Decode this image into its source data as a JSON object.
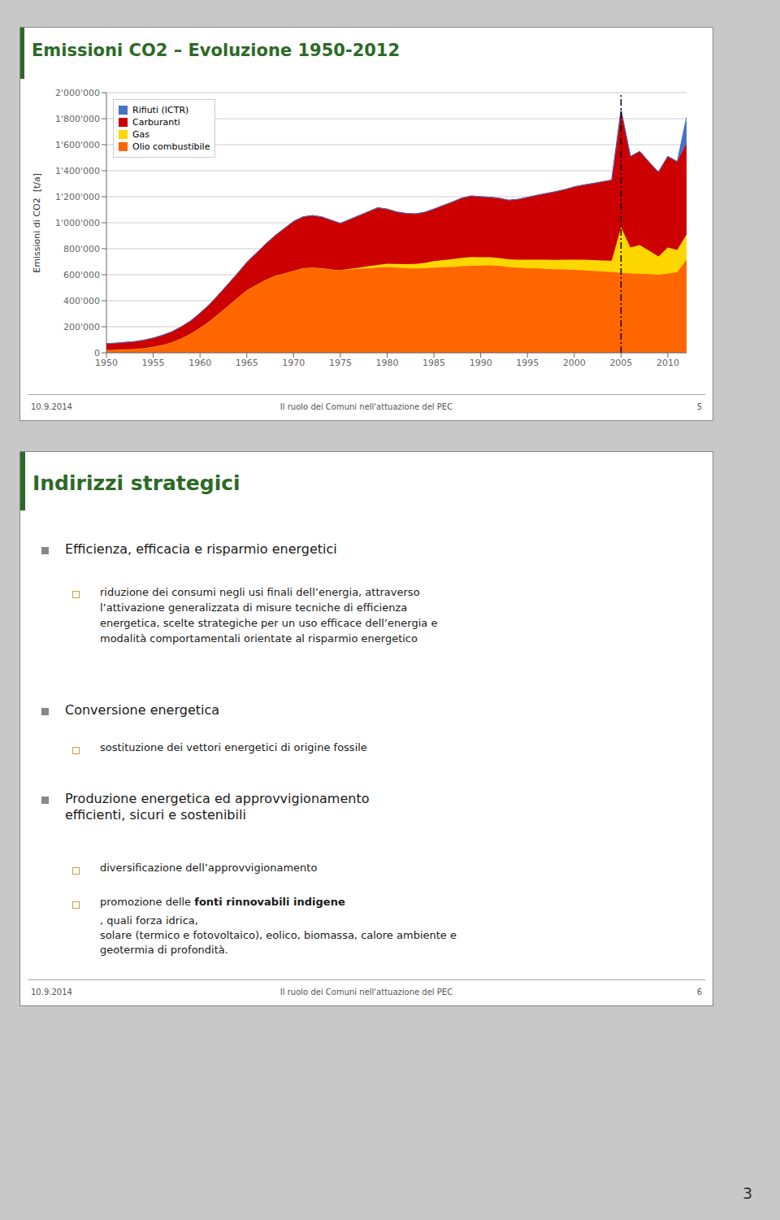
{
  "chart_data": {
    "type": "area",
    "title": "Emissioni CO2 – Evoluzione 1950-2012",
    "y_label": "Emissioni di CO2  [t/a]",
    "stacked": true,
    "grid": "y",
    "legend": "upper left",
    "x": [
      1950,
      1951,
      1952,
      1953,
      1954,
      1955,
      1956,
      1957,
      1958,
      1959,
      1960,
      1961,
      1962,
      1963,
      1964,
      1965,
      1966,
      1967,
      1968,
      1969,
      1970,
      1971,
      1972,
      1973,
      1974,
      1975,
      1976,
      1977,
      1978,
      1979,
      1980,
      1981,
      1982,
      1983,
      1984,
      1985,
      1986,
      1987,
      1988,
      1989,
      1990,
      1991,
      1992,
      1993,
      1994,
      1995,
      1996,
      1997,
      1998,
      1999,
      2000,
      2001,
      2002,
      2003,
      2004,
      2005,
      2006,
      2007,
      2008,
      2009,
      2010,
      2011,
      2012
    ],
    "series": [
      {
        "name": "Olio combustibile",
        "color": "#ff6600",
        "values": [
          20000,
          22000,
          25000,
          28000,
          35000,
          45000,
          60000,
          80000,
          110000,
          145000,
          190000,
          240000,
          300000,
          360000,
          420000,
          480000,
          520000,
          560000,
          590000,
          610000,
          630000,
          650000,
          655000,
          650000,
          640000,
          635000,
          640000,
          645000,
          650000,
          655000,
          660000,
          655000,
          650000,
          648000,
          650000,
          655000,
          658000,
          660000,
          665000,
          668000,
          670000,
          672000,
          668000,
          660000,
          655000,
          650000,
          648000,
          645000,
          642000,
          640000,
          638000,
          635000,
          630000,
          625000,
          620000,
          615000,
          610000,
          608000,
          605000,
          600000,
          610000,
          620000,
          715000
        ]
      },
      {
        "name": "Gas",
        "color": "#ffd700",
        "values": [
          0,
          0,
          0,
          0,
          0,
          0,
          0,
          0,
          0,
          0,
          0,
          0,
          0,
          0,
          0,
          0,
          0,
          0,
          0,
          0,
          0,
          0,
          0,
          0,
          0,
          0,
          5000,
          10000,
          15000,
          20000,
          25000,
          28000,
          32000,
          35000,
          40000,
          50000,
          55000,
          60000,
          65000,
          68000,
          65000,
          62000,
          60000,
          58000,
          60000,
          65000,
          68000,
          70000,
          72000,
          75000,
          78000,
          80000,
          82000,
          85000,
          88000,
          350000,
          200000,
          220000,
          180000,
          140000,
          200000,
          170000,
          195000
        ]
      },
      {
        "name": "Carburanti",
        "color": "#cc0000",
        "values": [
          50000,
          52000,
          55000,
          58000,
          62000,
          68000,
          75000,
          82000,
          90000,
          100000,
          115000,
          130000,
          148000,
          168000,
          190000,
          215000,
          245000,
          275000,
          310000,
          345000,
          380000,
          395000,
          400000,
          395000,
          380000,
          360000,
          380000,
          400000,
          420000,
          440000,
          420000,
          400000,
          390000,
          385000,
          390000,
          400000,
          420000,
          440000,
          460000,
          470000,
          465000,
          462000,
          460000,
          455000,
          465000,
          480000,
          495000,
          510000,
          525000,
          540000,
          560000,
          575000,
          590000,
          605000,
          620000,
          900000,
          700000,
          720000,
          680000,
          650000,
          700000,
          680000,
          700000
        ]
      },
      {
        "name": "Rifiuti (ICTR)",
        "color": "#4472c4",
        "values": [
          0,
          0,
          0,
          0,
          0,
          0,
          0,
          0,
          0,
          0,
          0,
          0,
          0,
          0,
          0,
          0,
          0,
          0,
          0,
          0,
          0,
          0,
          0,
          0,
          0,
          0,
          0,
          0,
          0,
          0,
          0,
          0,
          0,
          0,
          0,
          0,
          0,
          0,
          0,
          0,
          0,
          0,
          0,
          0,
          0,
          0,
          0,
          0,
          0,
          0,
          0,
          0,
          0,
          0,
          0,
          0,
          0,
          0,
          0,
          0,
          0,
          0,
          200000
        ]
      }
    ],
    "xlim": [
      1950,
      2012
    ],
    "xticks": [
      1950,
      1955,
      1960,
      1965,
      1970,
      1975,
      1980,
      1985,
      1990,
      1995,
      2000,
      2005,
      2010
    ],
    "ylim": [
      0,
      2000000
    ],
    "yticks": [
      0,
      {
        "value": 200000,
        "label": "200'000"
      },
      {
        "value": 400000,
        "label": "400'000"
      },
      {
        "value": 600000,
        "label": "600'000"
      },
      {
        "value": 800000,
        "label": "800'000"
      },
      {
        "value": 1000000,
        "label": "1'000'000"
      },
      {
        "value": 1200000,
        "label": "1'200'000"
      },
      {
        "value": 1400000,
        "label": "1'400'000"
      },
      {
        "value": 1600000,
        "label": "1'600'000"
      },
      {
        "value": 1800000,
        "label": "1'800'000"
      },
      {
        "value": 2000000,
        "label": "2'000'000"
      }
    ],
    "vline": {
      "x": 2005,
      "line_style": "dashdot",
      "color": "#000000"
    },
    "annotations": [
      "10.9.2014",
      "Il ruolo dei Comuni nell'attuazione del PEC",
      "5",
      "Indirizzi strategici",
      "Efficienza, efficacia e risparmio energetici",
      "riduzione dei consumi negli usi finali dell’energia, attraverso\nl’attivazione generalizzata di misure tecniche di efficienza\nenergetica, scelte strategiche per un uso efficace dell’energia e\nmodalità comportamentali orientate al risparmio energetico",
      "Conversione energetica",
      "sostituzione dei vettori energetici di origine fossile",
      "Produzione energetica ed approvvigionamento",
      "efficienti, sicuri e sostenibili",
      "diversificazione dell’approvvigionamento",
      "promozione delle ",
      "fonti rinnovabili indigene",
      ", quali forza idrica,\nsolare (termico e fotovoltaico), eolico, biomassa, calore ambiente e\ngeotermia di profondità.",
      "10.9.2014",
      "Il ruolo dei Comuni nell'attuazione del PEC",
      "6",
      "3"
    ]
  }
}
